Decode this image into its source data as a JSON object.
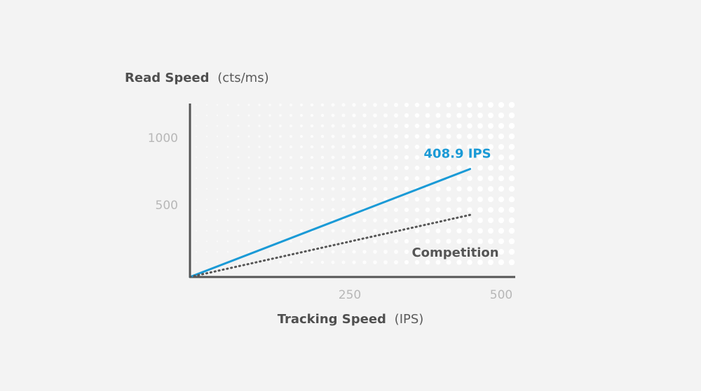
{
  "chart_data": {
    "type": "line",
    "y_title": "Read Speed",
    "y_unit": "(cts/ms)",
    "x_title": "Tracking Speed",
    "x_unit": "(IPS)",
    "x_ticks": [
      "250",
      "500"
    ],
    "y_ticks": [
      "1000",
      "500"
    ],
    "xlim": [
      0,
      500
    ],
    "ylim": [
      0,
      1250
    ],
    "series": [
      {
        "name": "408.9 IPS",
        "style": "solid",
        "color": "#1a9ad6",
        "points": [
          [
            0,
            0
          ],
          [
            450,
            800
          ]
        ]
      },
      {
        "name": "Competition",
        "style": "dotted",
        "color": "#555555",
        "points": [
          [
            0,
            0
          ],
          [
            450,
            460
          ]
        ]
      }
    ],
    "grid": false,
    "background_pattern": "dot-grid"
  }
}
